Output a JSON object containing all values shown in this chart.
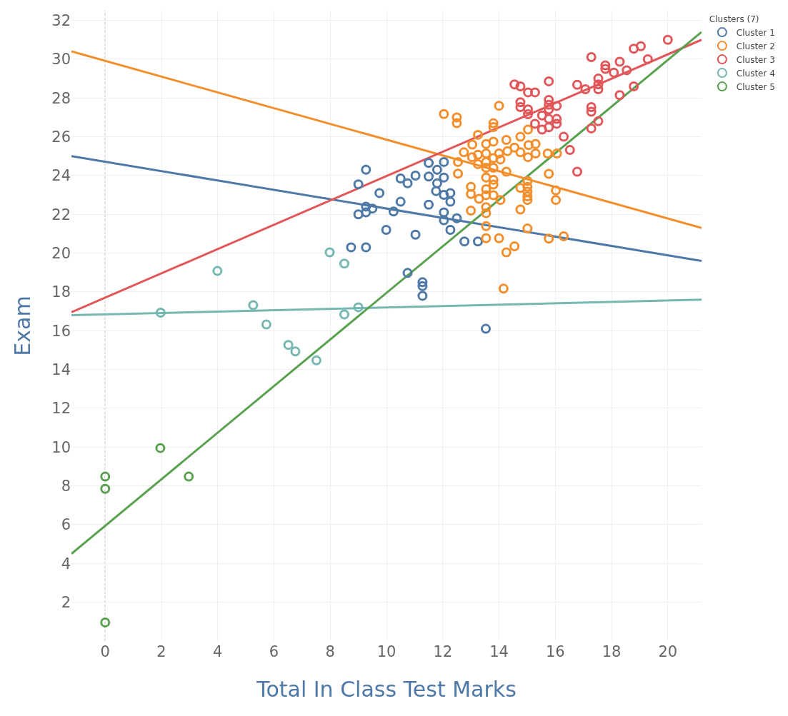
{
  "chart_data": {
    "type": "scatter",
    "xlabel": "Total In Class Test Marks",
    "ylabel": "Exam",
    "legend_title": "Clusters (7)",
    "legend": "top right",
    "grid": true,
    "marker": "circle",
    "xlim": [
      -1.2,
      21.2
    ],
    "ylim": [
      0,
      32.5
    ],
    "xticks": [
      0,
      2,
      4,
      6,
      8,
      10,
      12,
      14,
      16,
      18,
      20
    ],
    "yticks": [
      2,
      4,
      6,
      8,
      10,
      12,
      14,
      16,
      18,
      20,
      22,
      24,
      26,
      28,
      30,
      32
    ],
    "ref_lines": [
      {
        "axis": "x",
        "value": 0,
        "label": null,
        "color": "#aaaaaa",
        "line_style": "dotted"
      }
    ],
    "series": [
      {
        "name": "Cluster 1",
        "color": "#4e79a7",
        "x": [
          9.27,
          9.0,
          9.75,
          10.5,
          11.03,
          10.75,
          11.5,
          11.8,
          12.04,
          11.8,
          11.5,
          12.04,
          11.76,
          12.27,
          12.27,
          12.04,
          9.27,
          9.27,
          9.0,
          9.5,
          10.25,
          10.5,
          11.5,
          12.04,
          12.04,
          12.5,
          12.27,
          9.99,
          11.03,
          8.74,
          9.27,
          12.77,
          13.25,
          10.75,
          11.28,
          11.28,
          11.28,
          13.53
        ],
        "values": [
          24.3,
          23.55,
          23.1,
          23.85,
          24.0,
          23.6,
          24.65,
          24.3,
          24.7,
          23.6,
          23.95,
          23.9,
          23.2,
          23.1,
          22.65,
          23.0,
          22.4,
          22.1,
          22.0,
          22.3,
          22.15,
          22.65,
          22.5,
          22.1,
          21.7,
          21.8,
          21.2,
          21.2,
          20.95,
          20.3,
          20.3,
          20.6,
          20.6,
          18.98,
          18.5,
          18.3,
          17.8,
          16.1
        ]
      },
      {
        "name": "Cluster 2",
        "color": "#f28e2b",
        "x": [
          12.04,
          12.5,
          12.5,
          14.0,
          13.8,
          13.8,
          13.25,
          13.05,
          12.75,
          13.54,
          13.8,
          14.26,
          14.76,
          15.03,
          15.3,
          15.05,
          15.3,
          15.73,
          16.06,
          15.03,
          14.76,
          14.3,
          14.0,
          14.55,
          13.54,
          13.25,
          13.04,
          13.25,
          13.54,
          13.8,
          14.05,
          13.54,
          13.8,
          14.26,
          12.54,
          12.54,
          13.54,
          13.8,
          13.8,
          13.0,
          13.0,
          13.29,
          13.54,
          13.54,
          13.8,
          14.05,
          14.76,
          15.01,
          15.01,
          15.01,
          15.01,
          15.01,
          15.77,
          16.02,
          16.02,
          13.0,
          13.54,
          13.54,
          14.76,
          13.54,
          13.54,
          14.0,
          15.01,
          15.77,
          16.3,
          14.26,
          14.55,
          14.16
        ],
        "values": [
          27.17,
          27.0,
          26.7,
          27.6,
          26.7,
          26.5,
          26.1,
          25.6,
          25.2,
          25.63,
          25.75,
          25.84,
          26.0,
          26.37,
          25.63,
          25.57,
          25.14,
          25.14,
          25.14,
          24.95,
          25.2,
          25.26,
          25.14,
          25.44,
          25.14,
          25.07,
          24.95,
          24.59,
          24.7,
          24.9,
          24.83,
          24.4,
          24.4,
          24.2,
          24.7,
          24.1,
          23.9,
          23.78,
          23.54,
          23.42,
          23.05,
          22.8,
          23.3,
          22.99,
          22.99,
          22.74,
          23.36,
          23.72,
          23.42,
          23.17,
          22.93,
          22.74,
          24.09,
          23.23,
          22.74,
          22.19,
          22.37,
          22.06,
          22.25,
          21.39,
          20.77,
          20.77,
          21.27,
          20.75,
          20.87,
          20.04,
          20.35,
          18.17
        ]
      },
      {
        "name": "Cluster 3",
        "color": "#e15759",
        "x": [
          17.28,
          18.79,
          19.04,
          20.0,
          17.78,
          17.78,
          18.29,
          18.08,
          18.54,
          19.29,
          18.79,
          18.29,
          17.53,
          17.53,
          17.53,
          16.78,
          17.07,
          15.77,
          14.55,
          14.76,
          15.03,
          15.28,
          14.76,
          14.76,
          15.03,
          15.03,
          15.77,
          15.77,
          15.77,
          16.05,
          16.05,
          16.05,
          15.53,
          15.77,
          15.53,
          15.77,
          15.28,
          17.28,
          17.28,
          17.28,
          17.53,
          16.3,
          16.52,
          16.78
        ],
        "values": [
          30.11,
          30.54,
          30.67,
          31.0,
          29.68,
          29.5,
          29.87,
          29.31,
          29.43,
          30.0,
          28.6,
          28.15,
          29.0,
          28.7,
          28.45,
          28.68,
          28.45,
          28.86,
          28.7,
          28.6,
          28.29,
          28.29,
          27.78,
          27.53,
          27.41,
          27.16,
          27.9,
          27.65,
          27.41,
          27.59,
          26.92,
          26.67,
          27.1,
          26.92,
          26.37,
          26.49,
          26.67,
          27.53,
          27.29,
          26.43,
          26.8,
          26.0,
          25.32,
          24.2
        ]
      },
      {
        "name": "Cluster 4",
        "color": "#76b7b2",
        "x": [
          1.97,
          3.99,
          5.26,
          5.73,
          6.51,
          6.76,
          7.51,
          7.98,
          8.5,
          8.5,
          9.0
        ],
        "values": [
          16.93,
          19.08,
          17.32,
          16.32,
          15.27,
          14.93,
          14.47,
          20.04,
          19.46,
          16.84,
          17.21
        ]
      },
      {
        "name": "Cluster 5",
        "color": "#59a14f",
        "x": [
          0,
          0,
          1.96,
          2.97,
          0
        ],
        "values": [
          8.48,
          7.85,
          9.95,
          8.48,
          0.96
        ]
      },
      {
        "type": "line",
        "marker": "none",
        "color": "#4e79a7",
        "x": [
          -1.2,
          21.2
        ],
        "values": [
          25.0,
          19.6
        ]
      },
      {
        "type": "line",
        "marker": "none",
        "color": "#f28e2b",
        "x": [
          -1.2,
          21.2
        ],
        "values": [
          30.4,
          21.3
        ]
      },
      {
        "type": "line",
        "marker": "none",
        "color": "#e15759",
        "x": [
          -1.2,
          21.2
        ],
        "values": [
          16.95,
          31.0
        ]
      },
      {
        "type": "line",
        "marker": "none",
        "color": "#76b7b2",
        "x": [
          -1.2,
          21.2
        ],
        "values": [
          16.8,
          17.6
        ]
      },
      {
        "type": "line",
        "marker": "none",
        "color": "#59a14f",
        "x": [
          -1.2,
          21.2
        ],
        "values": [
          4.5,
          31.4
        ]
      }
    ]
  }
}
